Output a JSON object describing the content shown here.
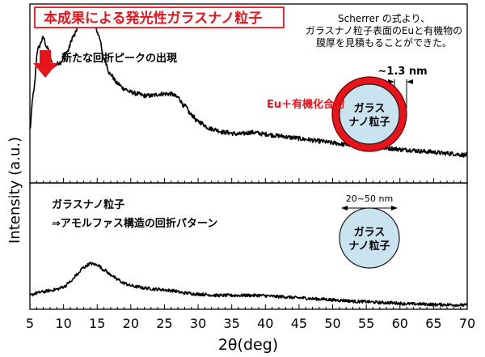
{
  "chart_data": {
    "type": "line",
    "xlabel": "2θ(deg)",
    "ylabel": "Intensity (a.u.)",
    "xlim": [
      5,
      70
    ],
    "x_ticks": [
      5,
      10,
      15,
      20,
      25,
      30,
      35,
      40,
      45,
      50,
      55,
      60,
      65,
      70
    ],
    "grid": false,
    "series": [
      {
        "panel": "top",
        "description": "本成果による発光性ガラスナノ粒子",
        "color": "#000000",
        "points": [
          [
            5.0,
            0.3
          ],
          [
            5.5,
            0.5
          ],
          [
            6.2,
            0.76
          ],
          [
            7.0,
            0.82
          ],
          [
            7.6,
            0.76
          ],
          [
            8.5,
            0.66
          ],
          [
            9.5,
            0.68
          ],
          [
            10.5,
            0.74
          ],
          [
            11.5,
            0.83
          ],
          [
            12.5,
            0.92
          ],
          [
            13.5,
            0.96
          ],
          [
            14.3,
            0.94
          ],
          [
            15.2,
            0.84
          ],
          [
            16.0,
            0.7
          ],
          [
            17.0,
            0.61
          ],
          [
            18.0,
            0.56
          ],
          [
            19.0,
            0.53
          ],
          [
            20.0,
            0.51
          ],
          [
            21.0,
            0.5
          ],
          [
            22.0,
            0.49
          ],
          [
            23.0,
            0.49
          ],
          [
            24.5,
            0.5
          ],
          [
            26.0,
            0.5
          ],
          [
            27.0,
            0.48
          ],
          [
            28.0,
            0.43
          ],
          [
            29.0,
            0.38
          ],
          [
            30.0,
            0.34
          ],
          [
            32.0,
            0.3
          ],
          [
            34.0,
            0.28
          ],
          [
            36.0,
            0.27
          ],
          [
            38.0,
            0.28
          ],
          [
            40.0,
            0.27
          ],
          [
            42.0,
            0.26
          ],
          [
            44.0,
            0.25
          ],
          [
            46.0,
            0.24
          ],
          [
            48.0,
            0.23
          ],
          [
            50.0,
            0.22
          ],
          [
            52.0,
            0.21
          ],
          [
            55.0,
            0.2
          ],
          [
            58.0,
            0.19
          ],
          [
            61.0,
            0.18
          ],
          [
            64.0,
            0.17
          ],
          [
            67.0,
            0.16
          ],
          [
            70.0,
            0.15
          ]
        ]
      },
      {
        "panel": "bottom",
        "description": "ガラスナノ粒子",
        "color": "#000000",
        "points": [
          [
            5.0,
            0.1
          ],
          [
            6.0,
            0.12
          ],
          [
            7.0,
            0.13
          ],
          [
            8.0,
            0.14
          ],
          [
            9.0,
            0.15
          ],
          [
            10.0,
            0.17
          ],
          [
            11.0,
            0.21
          ],
          [
            12.0,
            0.27
          ],
          [
            13.0,
            0.33
          ],
          [
            14.0,
            0.36
          ],
          [
            15.0,
            0.35
          ],
          [
            16.0,
            0.31
          ],
          [
            17.0,
            0.27
          ],
          [
            18.0,
            0.23
          ],
          [
            19.0,
            0.2
          ],
          [
            20.0,
            0.18
          ],
          [
            21.0,
            0.17
          ],
          [
            22.0,
            0.16
          ],
          [
            24.0,
            0.15
          ],
          [
            26.0,
            0.14
          ],
          [
            28.0,
            0.12
          ],
          [
            30.0,
            0.11
          ],
          [
            33.0,
            0.1
          ],
          [
            36.0,
            0.1
          ],
          [
            39.0,
            0.1
          ],
          [
            42.0,
            0.09
          ],
          [
            45.0,
            0.08
          ],
          [
            48.0,
            0.07
          ],
          [
            51.0,
            0.06
          ],
          [
            54.0,
            0.05
          ],
          [
            58.0,
            0.04
          ],
          [
            62.0,
            0.03
          ],
          [
            66.0,
            0.025
          ],
          [
            70.0,
            0.02
          ]
        ]
      }
    ],
    "annotations": {
      "top_title": "本成果による発光性ガラスナノ粒子",
      "new_peak": "新たな回折ピークの出現",
      "scherrer_lines": [
        "Scherrer の式より、",
        "ガラスナノ粒子表面のEuと有機物の",
        "膜厚を見積もることができた。"
      ],
      "thickness": "~1.3 nm",
      "shell_label": "Eu＋有機化合物",
      "particle_label_lines": [
        "ガラス",
        "ナノ粒子"
      ],
      "bottom_title": "ガラスナノ粒子",
      "bottom_subtitle": "⇒アモルファス構造の回折パターン",
      "size_label": "20~50 nm"
    },
    "colors": {
      "accent_red": "#e8141b",
      "particle_fill": "#c9e3ef",
      "particle_stroke": "#1a1a1a"
    }
  }
}
